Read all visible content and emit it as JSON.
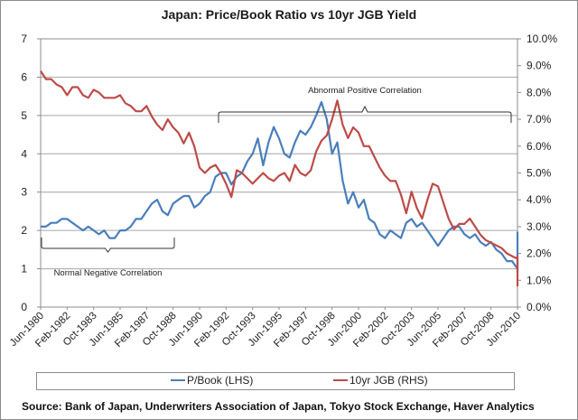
{
  "chart_data": {
    "type": "line",
    "title": "Japan: Price/Book Ratio vs 10yr JGB Yield",
    "xlabel": "",
    "ylabel_left": "",
    "ylabel_right": "",
    "x_start": "Jun-1980",
    "x_end": "Jun-2010",
    "x_tick_labels": [
      "Jun-1980",
      "Feb-1982",
      "Oct-1983",
      "Jun-1985",
      "Feb-1987",
      "Oct-1988",
      "Jun-1990",
      "Feb-1992",
      "Oct-1993",
      "Jun-1995",
      "Feb-1997",
      "Oct-1998",
      "Jun-2000",
      "Feb-2002",
      "Oct-2003",
      "Jun-2005",
      "Feb-2007",
      "Oct-2008",
      "Jun-2010"
    ],
    "x_tick_interval_months": 20,
    "ylim_left": [
      0,
      7
    ],
    "y_ticks_left": [
      "0",
      "1",
      "2",
      "3",
      "4",
      "5",
      "6",
      "7"
    ],
    "ylim_right": [
      0,
      10
    ],
    "y_ticks_right": [
      "0.0%",
      "1.0%",
      "2.0%",
      "3.0%",
      "4.0%",
      "5.0%",
      "6.0%",
      "7.0%",
      "8.0%",
      "9.0%",
      "10.0%"
    ],
    "grid": true,
    "legend_position": "bottom",
    "sample_interval_months": 4,
    "series": [
      {
        "name": "P/Book (LHS)",
        "axis": "left",
        "color": "#4a7ebb",
        "values": [
          2.1,
          2.1,
          2.2,
          2.2,
          2.3,
          2.3,
          2.2,
          2.1,
          2.0,
          2.1,
          2.0,
          1.9,
          2.0,
          1.8,
          1.8,
          2.0,
          2.0,
          2.1,
          2.3,
          2.3,
          2.5,
          2.7,
          2.8,
          2.5,
          2.4,
          2.7,
          2.8,
          2.9,
          2.9,
          2.6,
          2.7,
          2.9,
          3.0,
          3.4,
          3.5,
          3.5,
          3.2,
          3.4,
          3.5,
          3.8,
          4.0,
          4.4,
          3.7,
          4.3,
          4.7,
          4.4,
          4.0,
          3.9,
          4.3,
          4.6,
          4.5,
          4.7,
          5.0,
          5.35,
          4.9,
          4.0,
          4.3,
          3.3,
          2.7,
          3.0,
          2.6,
          2.8,
          2.3,
          2.2,
          1.9,
          1.8,
          2.0,
          1.9,
          1.8,
          2.2,
          2.3,
          2.1,
          2.2,
          2.0,
          1.8,
          1.6,
          1.8,
          2.0,
          2.1,
          2.1,
          1.9,
          1.8,
          1.9,
          1.7,
          1.6,
          1.7,
          1.5,
          1.4,
          1.2,
          1.2,
          1.0,
          1.1,
          1.2,
          1.1,
          1.0,
          1.2,
          1.4,
          1.3,
          1.3,
          1.4,
          1.3,
          1.2,
          1.1,
          1.0,
          1.1,
          1.1,
          1.1,
          1.0,
          1.0,
          1.0,
          1.1,
          1.2,
          1.3,
          1.4,
          1.4,
          1.6,
          1.7,
          1.95,
          1.8,
          1.5,
          1.6,
          1.7,
          1.6,
          1.5,
          1.4,
          1.2,
          1.1,
          1.1,
          1.0,
          0.9,
          1.0,
          1.1,
          1.1,
          1.0,
          1.1,
          1.0,
          1.0,
          0.95,
          0.9,
          1.0,
          1.05,
          0.95
        ]
      },
      {
        "name": "10yr JGB (RHS)",
        "axis": "right",
        "color": "#be4b48",
        "values": [
          8.8,
          8.5,
          8.5,
          8.3,
          8.2,
          7.9,
          8.2,
          8.2,
          7.9,
          7.8,
          8.1,
          8.0,
          7.8,
          7.8,
          7.8,
          7.9,
          7.6,
          7.5,
          7.3,
          7.3,
          7.5,
          7.1,
          6.8,
          6.6,
          7.0,
          6.7,
          6.5,
          6.1,
          6.5,
          6.0,
          5.2,
          5.0,
          5.2,
          5.3,
          5.0,
          4.6,
          4.1,
          5.1,
          5.0,
          4.8,
          4.6,
          4.8,
          5.0,
          4.8,
          4.7,
          4.9,
          5.0,
          4.7,
          5.3,
          5.0,
          4.9,
          5.1,
          5.8,
          6.2,
          6.4,
          7.0,
          7.7,
          6.8,
          6.3,
          6.7,
          6.5,
          6.0,
          6.0,
          5.6,
          5.2,
          4.9,
          4.7,
          4.7,
          4.2,
          3.5,
          4.3,
          3.7,
          3.3,
          4.0,
          4.6,
          4.5,
          3.9,
          3.3,
          2.9,
          3.1,
          3.1,
          3.3,
          3.0,
          2.7,
          2.5,
          2.4,
          2.3,
          2.2,
          2.0,
          1.9,
          1.8,
          1.5,
          1.0,
          1.4,
          1.7,
          1.8,
          1.7,
          1.5,
          1.5,
          1.8,
          1.7,
          1.5,
          1.3,
          1.1,
          1.2,
          1.3,
          1.3,
          1.0,
          0.8,
          1.0,
          1.3,
          1.4,
          1.3,
          1.3,
          1.2,
          1.5,
          1.8,
          1.9,
          1.7,
          1.7,
          1.6,
          1.7,
          1.6,
          1.5,
          1.5,
          1.3,
          1.3,
          1.3,
          1.4,
          1.3,
          1.4,
          1.3,
          1.4,
          1.3,
          1.2,
          1.3,
          1.3,
          1.2,
          1.2,
          1.1
        ]
      }
    ],
    "annotations": [
      {
        "text": "Normal Negative Correlation",
        "from": "Jun-1980",
        "to": "Jun-1989",
        "level_left_axis": 1.5
      },
      {
        "text": "Abnormal Positive Correlation",
        "from": "Jun-1991",
        "to": "Jan-2010",
        "level_right_axis": "7.2%"
      }
    ]
  },
  "legend": {
    "items": [
      {
        "label": "P/Book (LHS)",
        "color": "#4a7ebb"
      },
      {
        "label": "10yr JGB (RHS)",
        "color": "#be4b48"
      }
    ]
  },
  "source_text": "Source:  Bank of Japan, Underwriters Association of Japan, Tokyo Stock Exchange, Haver Analytics"
}
